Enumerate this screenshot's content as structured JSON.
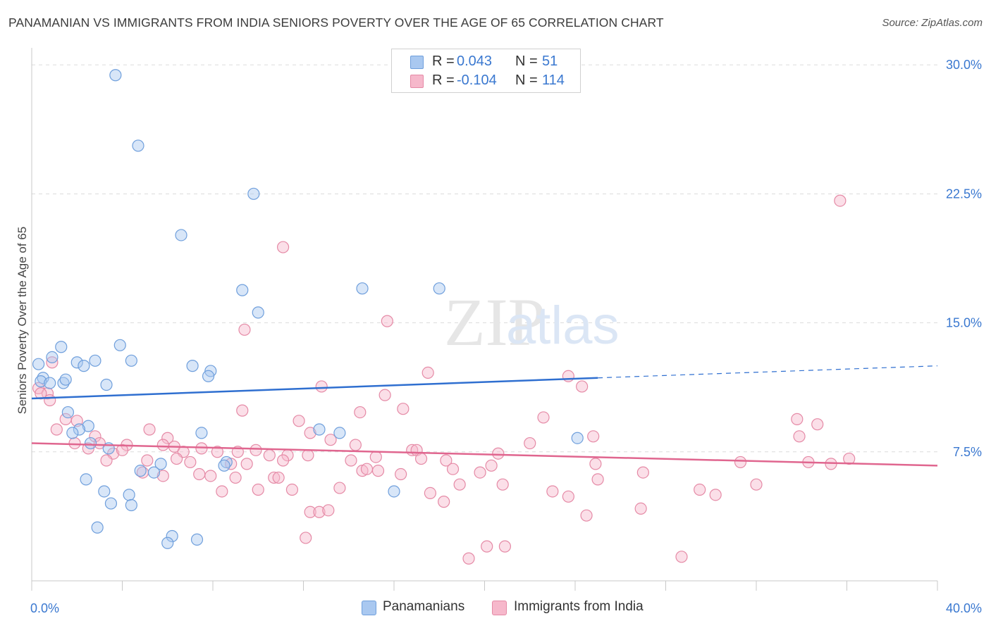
{
  "title": "PANAMANIAN VS IMMIGRANTS FROM INDIA SENIORS POVERTY OVER THE AGE OF 65 CORRELATION CHART",
  "source": "Source: ZipAtlas.com",
  "watermark": {
    "zip": "ZIP",
    "atlas": "atlas"
  },
  "legend": {
    "rows": [
      {
        "r_label": "R =",
        "r_value": "0.043",
        "n_label": "N =",
        "n_value": "51",
        "color": "#a9c8f0"
      },
      {
        "r_label": "R =",
        "r_value": "-0.104",
        "n_label": "N =",
        "n_value": "114",
        "color": "#f6b8cb"
      }
    ]
  },
  "bottom_legend": {
    "items": [
      {
        "label": "Panamanians",
        "color": "#b9d3f4"
      },
      {
        "label": "Immigrants from India",
        "color": "#f8c7d5"
      }
    ]
  },
  "colors": {
    "blue_fill": "#a9c8f0",
    "blue_stroke": "#6f9fdc",
    "blue_line": "#2f6fd0",
    "pink_fill": "#f6b8cb",
    "pink_stroke": "#e58aa6",
    "pink_line": "#e0668f",
    "tick_label": "#3a78d0",
    "grid": "#dcdcdc",
    "axis": "#c8c8c8"
  },
  "chart_data": {
    "type": "scatter",
    "title": "PANAMANIAN VS IMMIGRANTS FROM INDIA SENIORS POVERTY OVER THE AGE OF 65 CORRELATION CHART",
    "xlabel": "",
    "ylabel": "Seniors Poverty Over the Age of 65",
    "xlim": [
      0,
      40
    ],
    "ylim": [
      0,
      30.7
    ],
    "x_tick_labels": [
      "0.0%",
      "40.0%"
    ],
    "y_ticks": [
      7.5,
      15.0,
      22.5,
      30.0
    ],
    "y_tick_labels": [
      "7.5%",
      "15.0%",
      "22.5%",
      "30.0%"
    ],
    "grid": true,
    "series": [
      {
        "name": "Panamanians",
        "trend": {
          "x": [
            0,
            25.0
          ],
          "y": [
            10.6,
            11.8
          ],
          "dashed_to": [
            40,
            12.5
          ]
        },
        "points": [
          [
            3.7,
            29.4
          ],
          [
            4.7,
            25.3
          ],
          [
            9.8,
            22.5
          ],
          [
            6.6,
            20.1
          ],
          [
            9.3,
            16.9
          ],
          [
            14.6,
            17.0
          ],
          [
            18.0,
            17.0
          ],
          [
            10.0,
            15.6
          ],
          [
            3.9,
            13.7
          ],
          [
            1.3,
            13.6
          ],
          [
            0.9,
            13.0
          ],
          [
            0.3,
            12.6
          ],
          [
            2.8,
            12.8
          ],
          [
            2.0,
            12.7
          ],
          [
            2.3,
            12.5
          ],
          [
            4.4,
            12.8
          ],
          [
            7.1,
            12.5
          ],
          [
            7.9,
            12.2
          ],
          [
            7.8,
            11.9
          ],
          [
            0.5,
            11.8
          ],
          [
            0.4,
            11.6
          ],
          [
            0.8,
            11.5
          ],
          [
            1.4,
            11.5
          ],
          [
            1.5,
            11.7
          ],
          [
            3.3,
            11.4
          ],
          [
            1.6,
            9.8
          ],
          [
            2.5,
            9.0
          ],
          [
            2.1,
            8.8
          ],
          [
            1.8,
            8.6
          ],
          [
            7.5,
            8.6
          ],
          [
            12.7,
            8.8
          ],
          [
            13.6,
            8.6
          ],
          [
            24.1,
            8.3
          ],
          [
            2.6,
            8.0
          ],
          [
            3.4,
            7.7
          ],
          [
            8.6,
            6.9
          ],
          [
            5.7,
            6.8
          ],
          [
            8.5,
            6.7
          ],
          [
            4.8,
            6.4
          ],
          [
            5.4,
            6.3
          ],
          [
            2.4,
            5.9
          ],
          [
            3.2,
            5.2
          ],
          [
            4.3,
            5.0
          ],
          [
            16.0,
            5.2
          ],
          [
            3.5,
            4.5
          ],
          [
            4.4,
            4.4
          ],
          [
            2.9,
            3.1
          ],
          [
            6.2,
            2.6
          ],
          [
            7.3,
            2.4
          ],
          [
            6.0,
            2.2
          ]
        ]
      },
      {
        "name": "Immigrants from India",
        "trend": {
          "x": [
            0,
            40
          ],
          "y": [
            8.0,
            6.7
          ]
        },
        "points": [
          [
            35.7,
            22.1
          ],
          [
            11.1,
            19.4
          ],
          [
            9.4,
            14.6
          ],
          [
            15.7,
            15.1
          ],
          [
            0.9,
            12.7
          ],
          [
            17.5,
            12.1
          ],
          [
            23.7,
            11.9
          ],
          [
            0.3,
            11.2
          ],
          [
            0.7,
            10.9
          ],
          [
            0.4,
            10.9
          ],
          [
            0.8,
            10.5
          ],
          [
            12.8,
            11.3
          ],
          [
            15.6,
            10.8
          ],
          [
            24.3,
            11.3
          ],
          [
            16.4,
            10.0
          ],
          [
            9.3,
            9.9
          ],
          [
            14.5,
            9.8
          ],
          [
            1.5,
            9.4
          ],
          [
            2.0,
            9.3
          ],
          [
            11.8,
            9.3
          ],
          [
            22.6,
            9.5
          ],
          [
            33.8,
            9.4
          ],
          [
            34.7,
            9.1
          ],
          [
            1.1,
            8.8
          ],
          [
            2.8,
            8.4
          ],
          [
            5.2,
            8.8
          ],
          [
            6.0,
            8.3
          ],
          [
            12.3,
            8.6
          ],
          [
            1.9,
            8.0
          ],
          [
            3.0,
            8.0
          ],
          [
            4.2,
            7.9
          ],
          [
            5.8,
            7.9
          ],
          [
            6.3,
            7.8
          ],
          [
            7.5,
            7.7
          ],
          [
            8.2,
            7.5
          ],
          [
            14.3,
            7.9
          ],
          [
            13.2,
            8.2
          ],
          [
            16.8,
            7.6
          ],
          [
            22.0,
            8.0
          ],
          [
            24.8,
            8.4
          ],
          [
            33.9,
            8.4
          ],
          [
            2.5,
            7.7
          ],
          [
            3.6,
            7.4
          ],
          [
            4.0,
            7.6
          ],
          [
            6.7,
            7.5
          ],
          [
            9.1,
            7.5
          ],
          [
            9.9,
            7.6
          ],
          [
            10.5,
            7.3
          ],
          [
            11.3,
            7.3
          ],
          [
            12.2,
            7.3
          ],
          [
            15.2,
            7.2
          ],
          [
            17.0,
            7.6
          ],
          [
            20.6,
            7.4
          ],
          [
            3.3,
            7.0
          ],
          [
            5.1,
            7.0
          ],
          [
            6.4,
            7.1
          ],
          [
            7.0,
            6.9
          ],
          [
            8.8,
            6.8
          ],
          [
            9.5,
            6.8
          ],
          [
            11.1,
            7.0
          ],
          [
            14.1,
            7.0
          ],
          [
            17.2,
            7.1
          ],
          [
            18.3,
            7.0
          ],
          [
            20.3,
            6.7
          ],
          [
            24.9,
            6.8
          ],
          [
            31.3,
            6.9
          ],
          [
            34.3,
            6.9
          ],
          [
            35.3,
            6.8
          ],
          [
            36.1,
            7.1
          ],
          [
            4.9,
            6.3
          ],
          [
            5.8,
            6.1
          ],
          [
            7.4,
            6.2
          ],
          [
            7.9,
            6.1
          ],
          [
            9.0,
            6.0
          ],
          [
            10.7,
            6.0
          ],
          [
            10.9,
            6.0
          ],
          [
            14.6,
            6.4
          ],
          [
            14.8,
            6.5
          ],
          [
            15.3,
            6.4
          ],
          [
            16.3,
            6.2
          ],
          [
            18.6,
            6.5
          ],
          [
            19.8,
            6.3
          ],
          [
            27.0,
            6.3
          ],
          [
            18.9,
            5.6
          ],
          [
            20.8,
            5.6
          ],
          [
            25.0,
            5.9
          ],
          [
            32.0,
            5.6
          ],
          [
            8.4,
            5.2
          ],
          [
            10.0,
            5.3
          ],
          [
            11.5,
            5.3
          ],
          [
            13.6,
            5.4
          ],
          [
            17.6,
            5.1
          ],
          [
            18.2,
            4.6
          ],
          [
            23.0,
            5.2
          ],
          [
            23.7,
            4.9
          ],
          [
            29.5,
            5.3
          ],
          [
            30.2,
            5.0
          ],
          [
            12.3,
            4.0
          ],
          [
            12.7,
            4.0
          ],
          [
            13.1,
            4.1
          ],
          [
            24.5,
            3.8
          ],
          [
            26.9,
            4.2
          ],
          [
            12.1,
            2.5
          ],
          [
            20.1,
            2.0
          ],
          [
            20.9,
            2.0
          ],
          [
            19.3,
            1.3
          ],
          [
            28.7,
            1.4
          ]
        ]
      }
    ]
  }
}
